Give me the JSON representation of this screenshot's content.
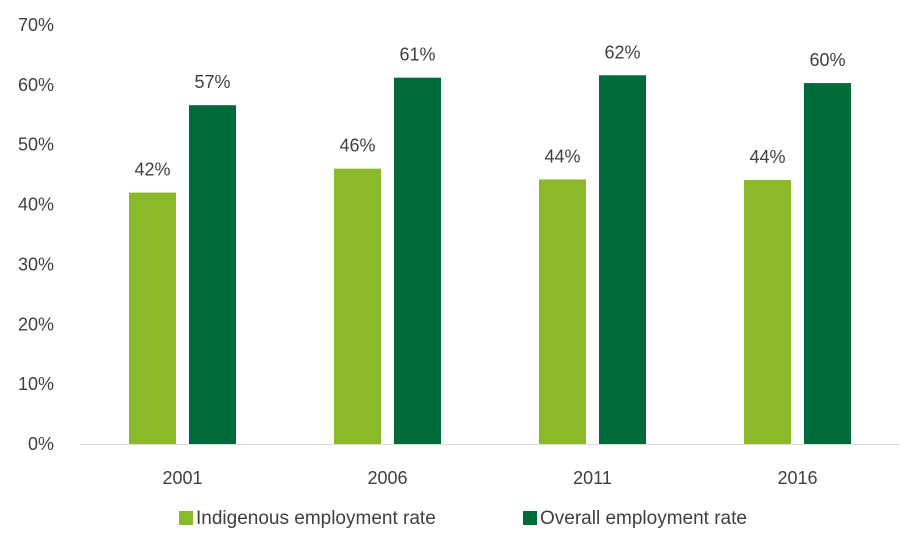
{
  "chart_data": {
    "type": "bar",
    "title": "",
    "xlabel": "",
    "ylabel": "",
    "categories": [
      "2001",
      "2006",
      "2011",
      "2016"
    ],
    "series": [
      {
        "name": "Indigenous employment rate",
        "color": "#8aba2a",
        "values": [
          42,
          46,
          44.2,
          44.1
        ],
        "labels": [
          "42%",
          "46%",
          "44%",
          "44%"
        ]
      },
      {
        "name": "Overall employment rate",
        "color": "#006b3a",
        "values": [
          56.6,
          61.2,
          61.6,
          60.3
        ],
        "labels": [
          "57%",
          "61%",
          "62%",
          "60%"
        ]
      }
    ],
    "ylim": [
      0,
      70
    ],
    "yticks": [
      0,
      10,
      20,
      30,
      40,
      50,
      60,
      70
    ],
    "ytick_labels": [
      "0%",
      "10%",
      "20%",
      "30%",
      "40%",
      "50%",
      "60%",
      "70%"
    ],
    "grid": false,
    "legend_position": "bottom"
  }
}
